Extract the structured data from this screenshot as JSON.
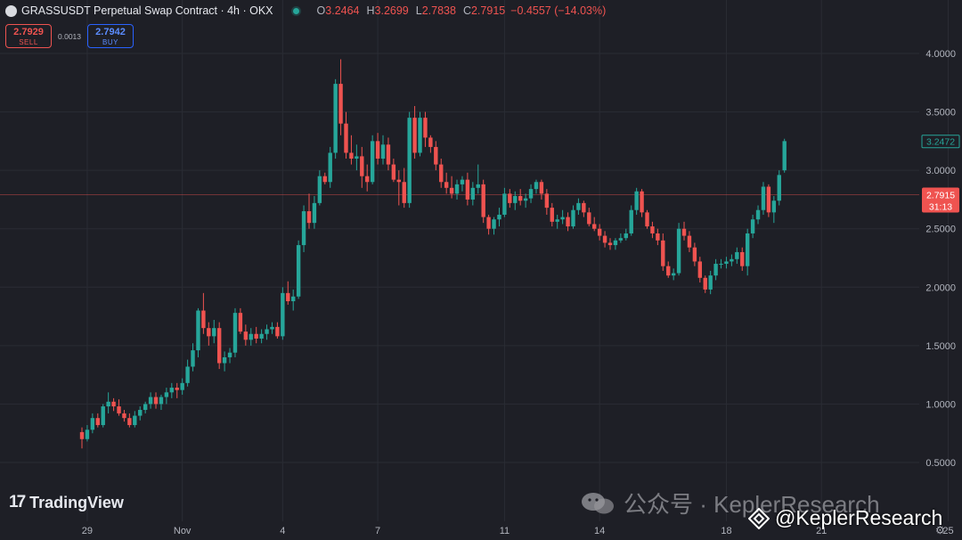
{
  "header": {
    "title": "GRASSUSDT Perpetual Swap Contract · 4h · OKX",
    "o_label": "O",
    "o": "3.2464",
    "h_label": "H",
    "h": "3.2699",
    "l_label": "L",
    "l": "2.7838",
    "c_label": "C",
    "c": "2.7915",
    "change": "−0.4557 (−14.03%)"
  },
  "trade": {
    "sell_price": "2.7929",
    "sell_label": "SELL",
    "spread": "0.0013",
    "buy_price": "2.7942",
    "buy_label": "BUY"
  },
  "brand": {
    "logo_mark": "17",
    "logo_text": "TradingView"
  },
  "watermarks": {
    "wechat": "公众号 · KeplerResearch",
    "handle": "@KeplerResearch"
  },
  "colors": {
    "background": "#1e1f26",
    "up": "#26a69a",
    "down": "#ef5350",
    "grid": "#2a2c34",
    "price_line": "#ef5350"
  },
  "icons": {
    "settings": "gear-icon"
  },
  "chart_data": {
    "type": "candlestick",
    "title": "GRASSUSDT Perpetual Swap Contract · 4h · OKX",
    "ylim": [
      0.3,
      4.4
    ],
    "y_ticks": [
      "4.0000",
      "3.5000",
      "3.0000",
      "2.5000",
      "2.0000",
      "1.5000",
      "1.0000",
      "0.5000"
    ],
    "y_tick_values": [
      4.0,
      3.5,
      3.0,
      2.5,
      2.0,
      1.5,
      1.0,
      0.5
    ],
    "x_ticks": [
      {
        "label": "29",
        "index": 1
      },
      {
        "label": "Nov",
        "index": 19
      },
      {
        "label": "4",
        "index": 38
      },
      {
        "label": "7",
        "index": 56
      },
      {
        "label": "11",
        "index": 80
      },
      {
        "label": "14",
        "index": 98
      },
      {
        "label": "18",
        "index": 122
      },
      {
        "label": "21",
        "index": 140
      },
      {
        "label": "25",
        "index": 164
      }
    ],
    "last_price": "2.7915",
    "last_price_value": 2.7915,
    "countdown": "31:13",
    "prev_close_label": "3.2472",
    "prev_close_value": 3.2472,
    "candles": [
      [
        0.76,
        0.8,
        0.62,
        0.7
      ],
      [
        0.7,
        0.82,
        0.68,
        0.78
      ],
      [
        0.78,
        0.92,
        0.75,
        0.88
      ],
      [
        0.88,
        0.92,
        0.8,
        0.82
      ],
      [
        0.82,
        1.0,
        0.8,
        0.98
      ],
      [
        0.98,
        1.1,
        0.92,
        1.02
      ],
      [
        1.02,
        1.05,
        0.94,
        0.98
      ],
      [
        0.98,
        1.04,
        0.9,
        0.92
      ],
      [
        0.92,
        0.95,
        0.85,
        0.88
      ],
      [
        0.88,
        0.92,
        0.8,
        0.82
      ],
      [
        0.82,
        0.94,
        0.8,
        0.9
      ],
      [
        0.9,
        0.98,
        0.86,
        0.95
      ],
      [
        0.95,
        1.02,
        0.92,
        1.0
      ],
      [
        1.0,
        1.1,
        0.96,
        1.06
      ],
      [
        1.06,
        1.1,
        0.96,
        1.0
      ],
      [
        1.0,
        1.08,
        0.95,
        1.06
      ],
      [
        1.06,
        1.14,
        1.0,
        1.1
      ],
      [
        1.1,
        1.18,
        1.05,
        1.14
      ],
      [
        1.14,
        1.18,
        1.05,
        1.12
      ],
      [
        1.12,
        1.22,
        1.08,
        1.18
      ],
      [
        1.18,
        1.38,
        1.15,
        1.32
      ],
      [
        1.32,
        1.52,
        1.28,
        1.46
      ],
      [
        1.46,
        1.82,
        1.4,
        1.8
      ],
      [
        1.8,
        1.95,
        1.6,
        1.65
      ],
      [
        1.65,
        1.7,
        1.5,
        1.58
      ],
      [
        1.58,
        1.72,
        1.52,
        1.65
      ],
      [
        1.65,
        1.7,
        1.3,
        1.35
      ],
      [
        1.35,
        1.45,
        1.28,
        1.4
      ],
      [
        1.4,
        1.48,
        1.35,
        1.44
      ],
      [
        1.44,
        1.82,
        1.4,
        1.78
      ],
      [
        1.78,
        1.82,
        1.6,
        1.62
      ],
      [
        1.62,
        1.68,
        1.5,
        1.55
      ],
      [
        1.55,
        1.65,
        1.5,
        1.6
      ],
      [
        1.6,
        1.66,
        1.52,
        1.56
      ],
      [
        1.56,
        1.64,
        1.52,
        1.6
      ],
      [
        1.6,
        1.68,
        1.55,
        1.64
      ],
      [
        1.64,
        1.7,
        1.6,
        1.66
      ],
      [
        1.66,
        1.7,
        1.56,
        1.58
      ],
      [
        1.58,
        2.0,
        1.55,
        1.95
      ],
      [
        1.95,
        2.05,
        1.85,
        1.88
      ],
      [
        1.88,
        1.98,
        1.8,
        1.92
      ],
      [
        1.92,
        2.4,
        1.9,
        2.36
      ],
      [
        2.36,
        2.7,
        2.3,
        2.65
      ],
      [
        2.65,
        2.8,
        2.5,
        2.55
      ],
      [
        2.55,
        2.78,
        2.5,
        2.72
      ],
      [
        2.72,
        3.0,
        2.7,
        2.95
      ],
      [
        2.95,
        2.98,
        2.88,
        2.9
      ],
      [
        2.9,
        3.2,
        2.85,
        3.15
      ],
      [
        3.15,
        3.78,
        3.1,
        3.74
      ],
      [
        3.74,
        3.95,
        3.3,
        3.4
      ],
      [
        3.4,
        3.5,
        3.1,
        3.15
      ],
      [
        3.15,
        3.3,
        3.05,
        3.1
      ],
      [
        3.1,
        3.22,
        3.0,
        3.12
      ],
      [
        3.12,
        3.2,
        2.85,
        2.95
      ],
      [
        2.95,
        3.05,
        2.82,
        2.9
      ],
      [
        2.9,
        3.3,
        2.88,
        3.25
      ],
      [
        3.25,
        3.32,
        3.05,
        3.1
      ],
      [
        3.1,
        3.3,
        3.05,
        3.22
      ],
      [
        3.22,
        3.28,
        3.0,
        3.05
      ],
      [
        3.05,
        3.1,
        2.9,
        2.92
      ],
      [
        2.92,
        3.0,
        2.7,
        2.9
      ],
      [
        2.9,
        3.02,
        2.68,
        2.72
      ],
      [
        2.72,
        3.5,
        2.68,
        3.45
      ],
      [
        3.45,
        3.55,
        3.1,
        3.15
      ],
      [
        3.15,
        3.5,
        3.12,
        3.45
      ],
      [
        3.45,
        3.5,
        3.2,
        3.28
      ],
      [
        3.28,
        3.3,
        3.15,
        3.2
      ],
      [
        3.2,
        3.25,
        3.0,
        3.05
      ],
      [
        3.05,
        3.1,
        2.85,
        2.9
      ],
      [
        2.9,
        2.98,
        2.8,
        2.85
      ],
      [
        2.85,
        2.95,
        2.76,
        2.8
      ],
      [
        2.8,
        2.92,
        2.75,
        2.88
      ],
      [
        2.88,
        2.95,
        2.82,
        2.92
      ],
      [
        2.92,
        2.98,
        2.7,
        2.75
      ],
      [
        2.75,
        2.9,
        2.7,
        2.85
      ],
      [
        2.85,
        3.05,
        2.8,
        2.88
      ],
      [
        2.88,
        2.92,
        2.55,
        2.6
      ],
      [
        2.6,
        2.62,
        2.45,
        2.5
      ],
      [
        2.5,
        2.6,
        2.45,
        2.58
      ],
      [
        2.58,
        2.68,
        2.52,
        2.62
      ],
      [
        2.62,
        2.85,
        2.6,
        2.8
      ],
      [
        2.8,
        2.84,
        2.68,
        2.72
      ],
      [
        2.72,
        2.82,
        2.66,
        2.78
      ],
      [
        2.78,
        2.84,
        2.7,
        2.74
      ],
      [
        2.74,
        2.8,
        2.68,
        2.76
      ],
      [
        2.76,
        2.88,
        2.72,
        2.84
      ],
      [
        2.84,
        2.92,
        2.8,
        2.9
      ],
      [
        2.9,
        2.92,
        2.75,
        2.8
      ],
      [
        2.8,
        2.84,
        2.62,
        2.68
      ],
      [
        2.68,
        2.72,
        2.52,
        2.56
      ],
      [
        2.56,
        2.62,
        2.5,
        2.58
      ],
      [
        2.58,
        2.66,
        2.54,
        2.6
      ],
      [
        2.6,
        2.64,
        2.48,
        2.52
      ],
      [
        2.52,
        2.7,
        2.5,
        2.66
      ],
      [
        2.66,
        2.76,
        2.62,
        2.72
      ],
      [
        2.72,
        2.74,
        2.6,
        2.64
      ],
      [
        2.64,
        2.68,
        2.52,
        2.54
      ],
      [
        2.54,
        2.6,
        2.48,
        2.5
      ],
      [
        2.5,
        2.54,
        2.4,
        2.44
      ],
      [
        2.44,
        2.48,
        2.34,
        2.38
      ],
      [
        2.38,
        2.42,
        2.32,
        2.36
      ],
      [
        2.36,
        2.42,
        2.32,
        2.4
      ],
      [
        2.4,
        2.46,
        2.38,
        2.42
      ],
      [
        2.42,
        2.5,
        2.4,
        2.46
      ],
      [
        2.46,
        2.7,
        2.44,
        2.66
      ],
      [
        2.66,
        2.85,
        2.62,
        2.82
      ],
      [
        2.82,
        2.84,
        2.6,
        2.64
      ],
      [
        2.64,
        2.66,
        2.5,
        2.52
      ],
      [
        2.52,
        2.56,
        2.42,
        2.46
      ],
      [
        2.46,
        2.5,
        2.36,
        2.4
      ],
      [
        2.4,
        2.46,
        2.14,
        2.18
      ],
      [
        2.18,
        2.22,
        2.08,
        2.1
      ],
      [
        2.1,
        2.16,
        2.06,
        2.12
      ],
      [
        2.12,
        2.55,
        2.1,
        2.5
      ],
      [
        2.5,
        2.56,
        2.4,
        2.44
      ],
      [
        2.44,
        2.48,
        2.3,
        2.34
      ],
      [
        2.34,
        2.38,
        2.18,
        2.22
      ],
      [
        2.22,
        2.26,
        2.04,
        2.08
      ],
      [
        2.08,
        2.1,
        1.95,
        1.98
      ],
      [
        1.98,
        2.14,
        1.94,
        2.1
      ],
      [
        2.1,
        2.24,
        2.06,
        2.2
      ],
      [
        2.2,
        2.24,
        2.16,
        2.2
      ],
      [
        2.2,
        2.26,
        2.16,
        2.22
      ],
      [
        2.22,
        2.28,
        2.18,
        2.24
      ],
      [
        2.24,
        2.34,
        2.2,
        2.3
      ],
      [
        2.3,
        2.34,
        2.14,
        2.18
      ],
      [
        2.18,
        2.5,
        2.1,
        2.46
      ],
      [
        2.46,
        2.62,
        2.42,
        2.58
      ],
      [
        2.58,
        2.7,
        2.54,
        2.66
      ],
      [
        2.66,
        2.9,
        2.62,
        2.86
      ],
      [
        2.86,
        2.88,
        2.6,
        2.64
      ],
      [
        2.64,
        2.78,
        2.55,
        2.74
      ],
      [
        2.74,
        3.0,
        2.7,
        2.96
      ],
      [
        3.0,
        3.27,
        2.98,
        3.25
      ]
    ]
  }
}
